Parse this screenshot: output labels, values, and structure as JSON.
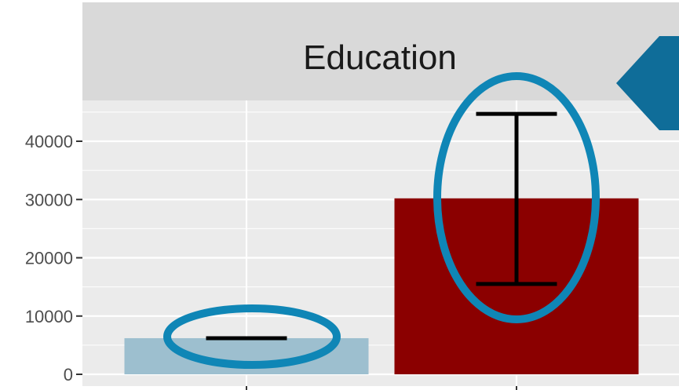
{
  "chart_data": {
    "type": "bar",
    "facet_title": "Education",
    "categories": [
      "",
      ""
    ],
    "values": [
      6200,
      30200
    ],
    "error_bars": [
      {
        "low": 6200,
        "high": 6200
      },
      {
        "low": 15500,
        "high": 44700
      }
    ],
    "bar_colors": [
      "#9dbfcf",
      "#8b0000"
    ],
    "ylim": [
      0,
      47000
    ],
    "yticks": [
      0,
      10000,
      20000,
      30000,
      40000
    ],
    "grid": true,
    "background": "#ebebeb",
    "strip_color": "#d9d9d9",
    "annotation_color": "#0f86b6",
    "arrow_color": "#0f6d99"
  }
}
